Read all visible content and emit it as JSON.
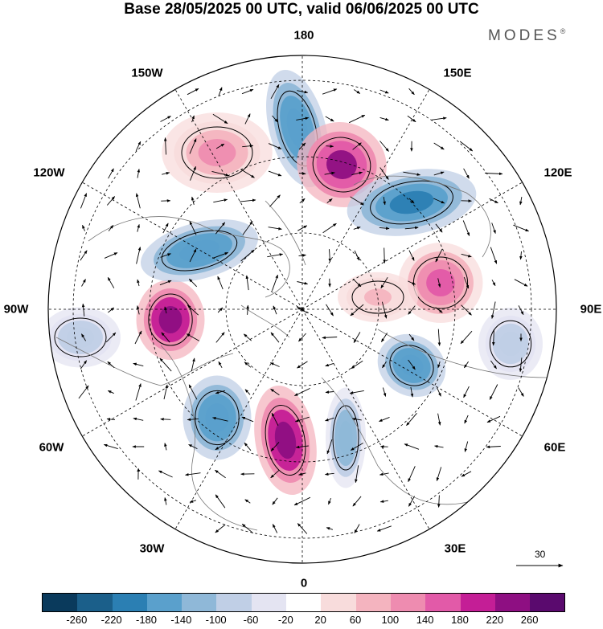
{
  "title": "Base 28/05/2025 00 UTC, valid 06/06/2025 00 UTC",
  "brand": "MODES",
  "brand_mark": "®",
  "longitude_labels": [
    "180",
    "150E",
    "120E",
    "90E",
    "60E",
    "30E",
    "0",
    "30W",
    "60W",
    "90W",
    "120W",
    "150W"
  ],
  "reference_vector": "30",
  "colorbar": {
    "colors": [
      "#0a3a5c",
      "#1b5f8a",
      "#2b7fb3",
      "#5aa0cc",
      "#8fb8d8",
      "#c0cfe6",
      "#e4e4f2",
      "#ffffff",
      "#f8dcdc",
      "#f4b4bf",
      "#ee8cb0",
      "#e25aa8",
      "#c41e96",
      "#8e0f82",
      "#5a0a6e"
    ],
    "tick_labels": [
      "-260",
      "-220",
      "-180",
      "-140",
      "-100",
      "-60",
      "-20",
      "20",
      "60",
      "100",
      "140",
      "180",
      "220",
      "260"
    ]
  },
  "anomaly_centers": [
    {
      "sign": "negative",
      "strength": -180
    },
    {
      "sign": "positive",
      "strength": 220
    },
    {
      "sign": "negative",
      "strength": -200
    },
    {
      "sign": "positive",
      "strength": 160
    },
    {
      "sign": "negative",
      "strength": -100
    },
    {
      "sign": "negative",
      "strength": -180
    },
    {
      "sign": "positive",
      "strength": 240
    },
    {
      "sign": "negative",
      "strength": -180
    },
    {
      "sign": "positive",
      "strength": 240
    },
    {
      "sign": "negative",
      "strength": -140
    },
    {
      "sign": "negative",
      "strength": -180
    },
    {
      "sign": "positive",
      "strength": 100
    },
    {
      "sign": "negative",
      "strength": -100
    },
    {
      "sign": "positive",
      "strength": 60
    }
  ]
}
